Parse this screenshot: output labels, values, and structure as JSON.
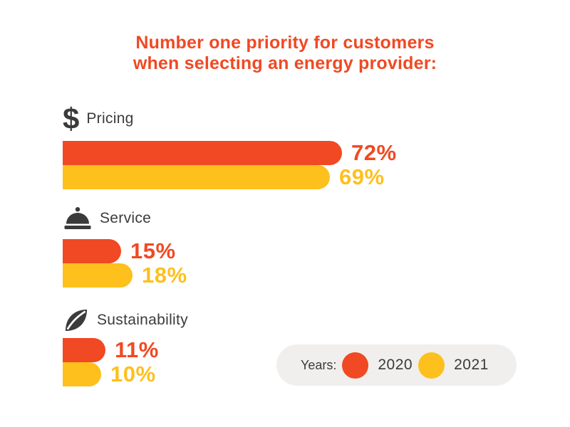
{
  "title": {
    "line1": "Number one priority for customers",
    "line2": "when selecting an energy provider:"
  },
  "colors": {
    "red": "#F04923",
    "yellow": "#FDC01D",
    "text_dark": "#3B3B3B",
    "legend_bg": "#F0EFED",
    "background": "#FFFFFF"
  },
  "chart_data": {
    "type": "bar",
    "orientation": "horizontal",
    "title": "Number one priority for customers when selecting an energy provider:",
    "categories": [
      "Pricing",
      "Service",
      "Sustainability"
    ],
    "category_icons": [
      "dollar-icon",
      "cloche-icon",
      "leaf-icon"
    ],
    "series": [
      {
        "name": "2020",
        "color": "#F04923",
        "values": [
          72,
          15,
          11
        ]
      },
      {
        "name": "2021",
        "color": "#FDC01D",
        "values": [
          69,
          18,
          10
        ]
      }
    ],
    "value_suffix": "%",
    "xlim": [
      0,
      100
    ],
    "grid": false,
    "legend_position": "bottom-right",
    "value_labels": "end-of-bar"
  },
  "legend": {
    "label": "Years:",
    "items": [
      {
        "name": "2020",
        "color": "#F04923"
      },
      {
        "name": "2021",
        "color": "#FDC01D"
      }
    ]
  }
}
